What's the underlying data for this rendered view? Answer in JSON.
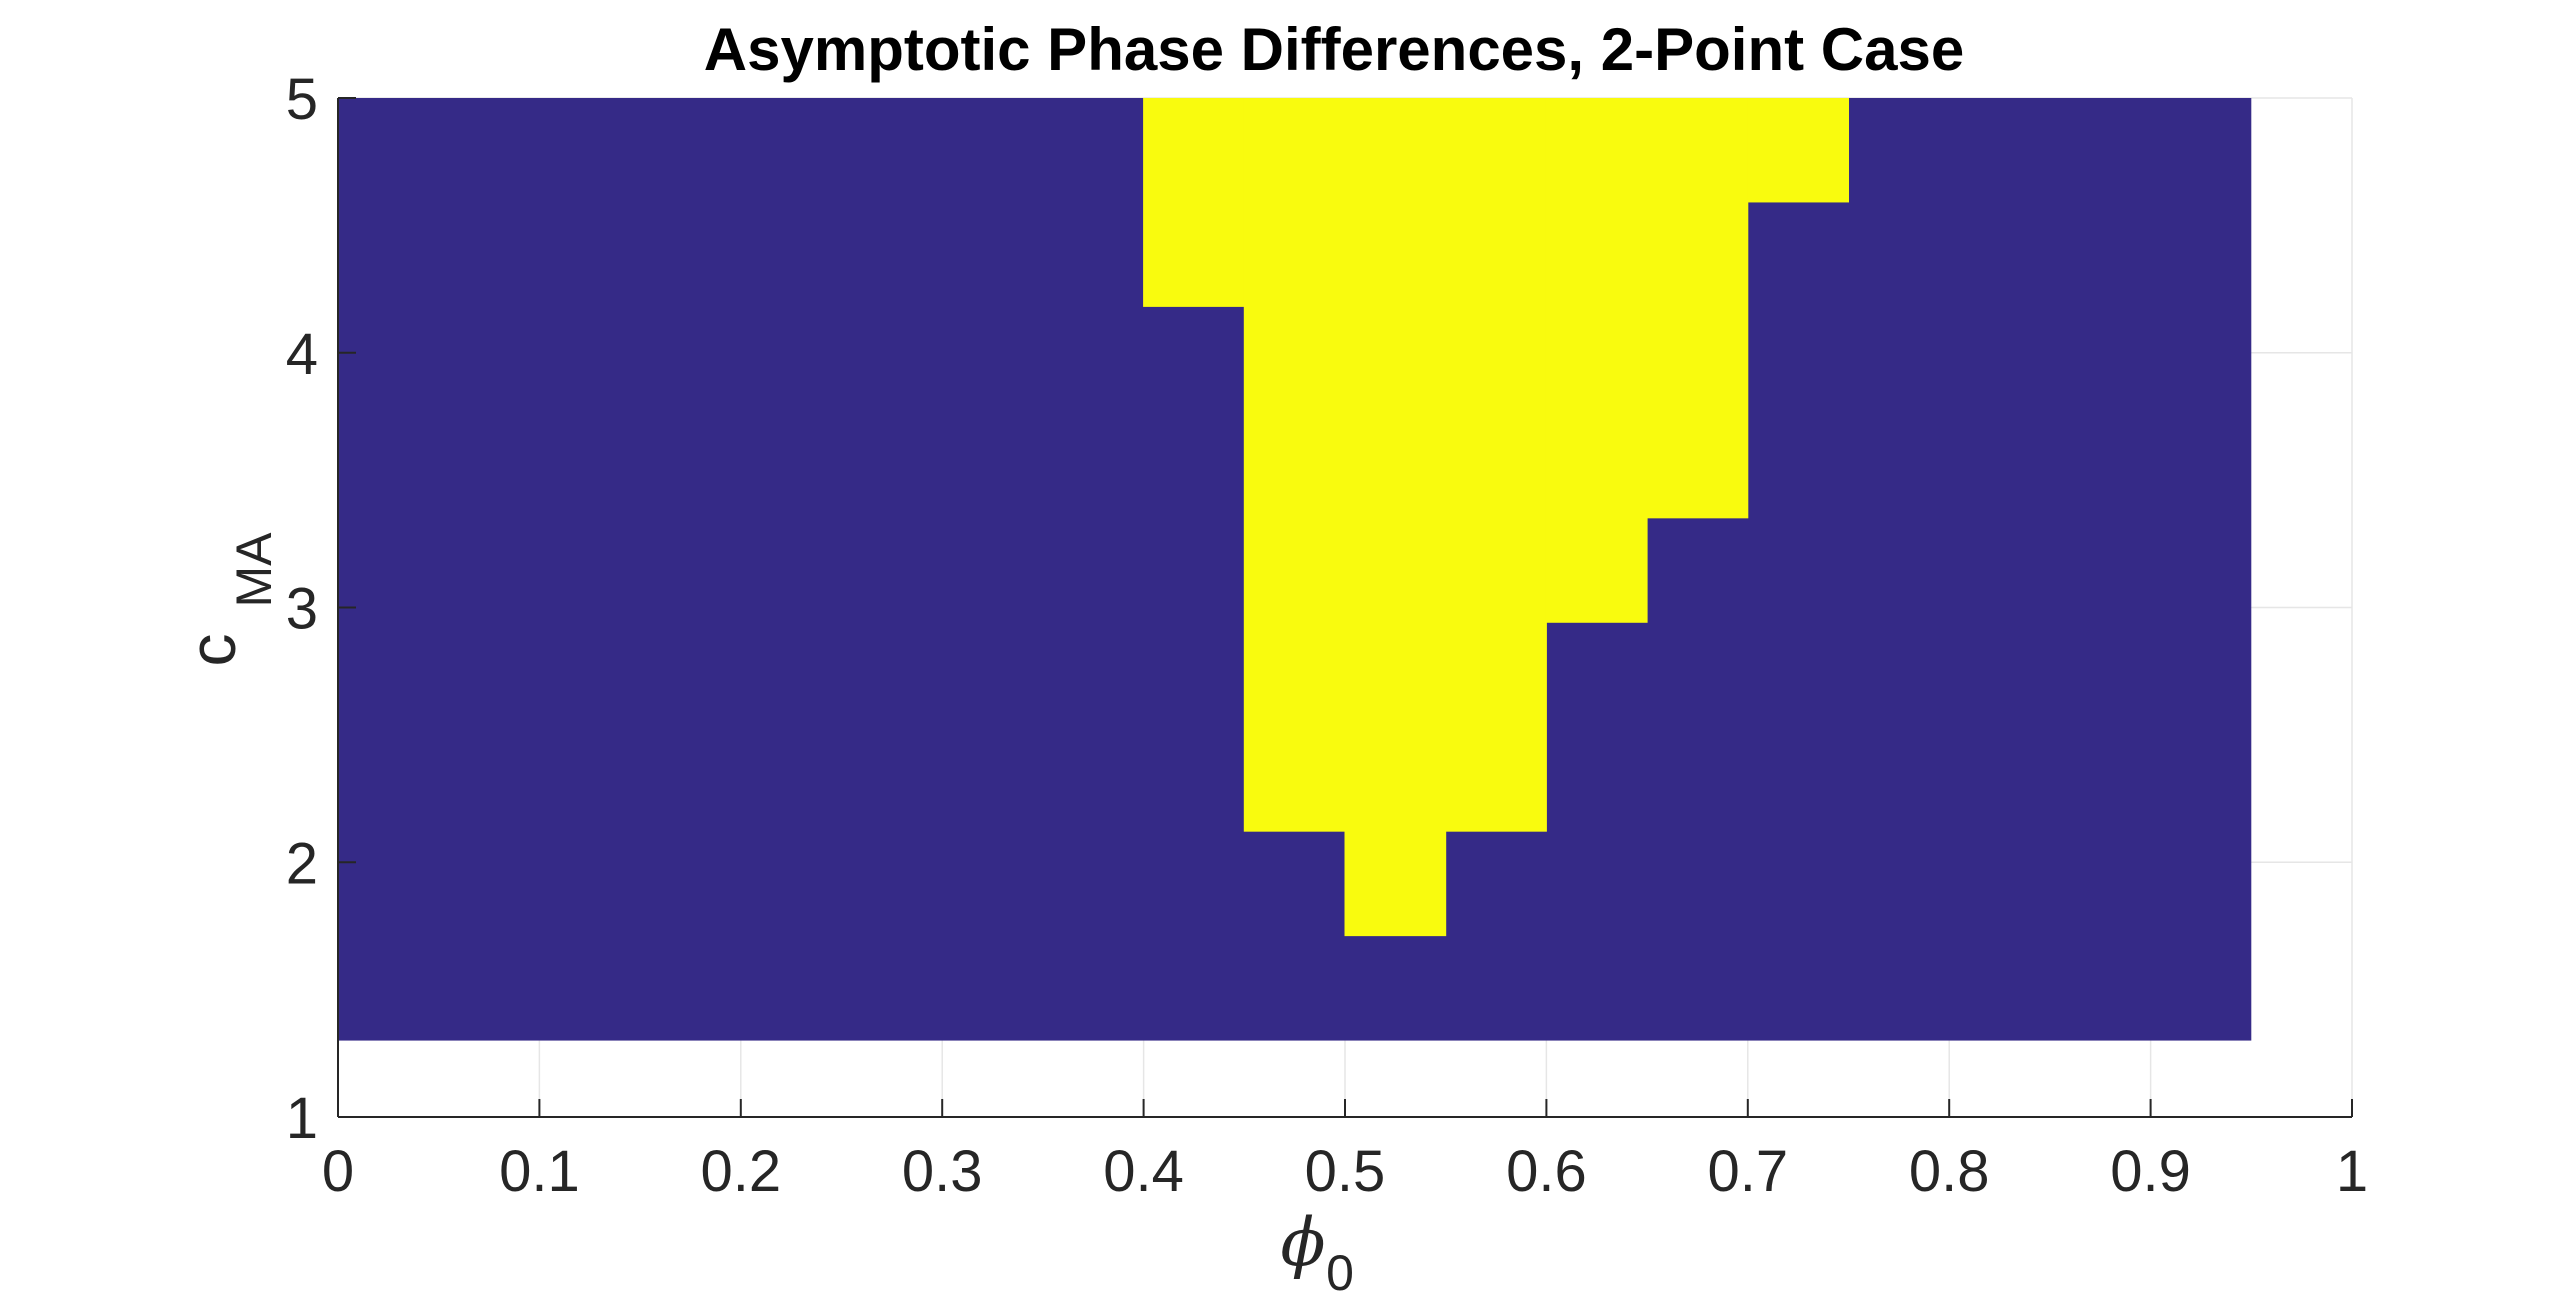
{
  "chart_data": {
    "type": "heatmap",
    "title": "Asymptotic Phase Differences, 2-Point Case",
    "xlabel": "ϕ",
    "xlabel_sub": "0",
    "ylabel": "c",
    "ylabel_sub": "MA",
    "xlim": [
      0,
      1
    ],
    "ylim": [
      1,
      5
    ],
    "xticks": [
      0,
      0.1,
      0.2,
      0.3,
      0.4,
      0.5,
      0.6,
      0.7,
      0.8,
      0.9,
      1
    ],
    "xtick_labels": [
      "0",
      "0.1",
      "0.2",
      "0.3",
      "0.4",
      "0.5",
      "0.6",
      "0.7",
      "0.8",
      "0.9",
      "1"
    ],
    "yticks": [
      1,
      2,
      3,
      4,
      5
    ],
    "ytick_labels": [
      "1",
      "2",
      "3",
      "4",
      "5"
    ],
    "grid": true,
    "colors": {
      "low": "#352a87",
      "high": "#f9fb0e"
    },
    "background_region": {
      "x": [
        0,
        0.95
      ],
      "y": [
        1.3,
        5
      ],
      "value": 0
    },
    "high_region_columns": [
      {
        "x": [
          0.4,
          0.45
        ],
        "y": [
          4.18,
          5
        ]
      },
      {
        "x": [
          0.45,
          0.5
        ],
        "y": [
          2.12,
          5
        ]
      },
      {
        "x": [
          0.5,
          0.55
        ],
        "y": [
          1.71,
          5
        ]
      },
      {
        "x": [
          0.55,
          0.6
        ],
        "y": [
          2.12,
          5
        ]
      },
      {
        "x": [
          0.6,
          0.65
        ],
        "y": [
          2.94,
          5
        ]
      },
      {
        "x": [
          0.65,
          0.7
        ],
        "y": [
          3.35,
          5
        ]
      },
      {
        "x": [
          0.7,
          0.75
        ],
        "y": [
          4.59,
          5
        ]
      }
    ]
  }
}
